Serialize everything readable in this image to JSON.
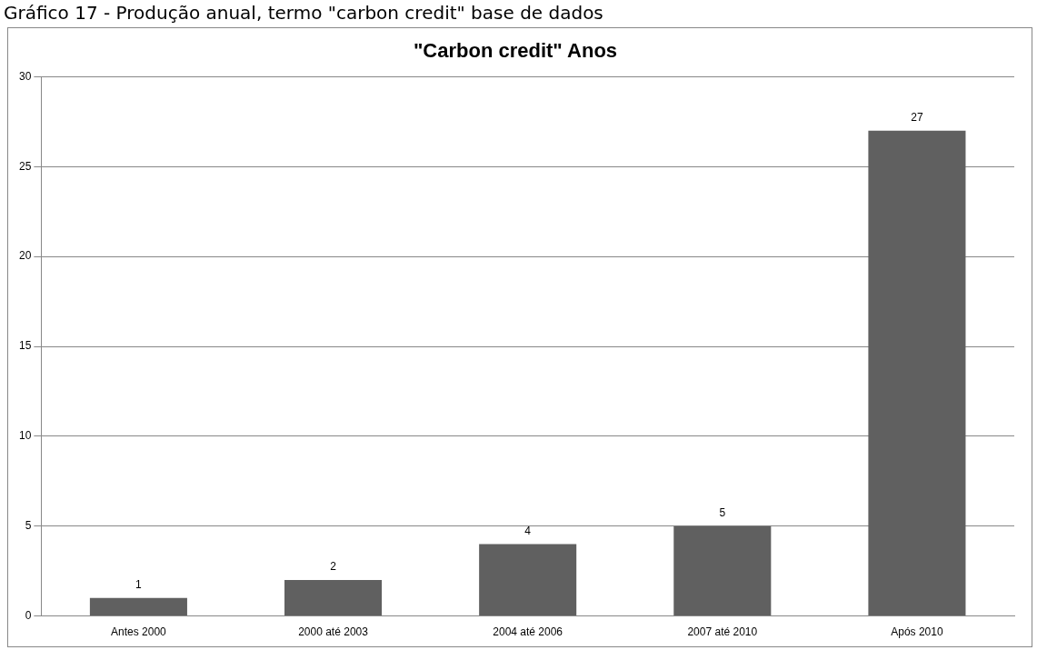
{
  "chart_data": {
    "type": "bar",
    "title": "\"Carbon credit\" Anos",
    "annotations": [
      "Gráfico 17 - Produção anual, termo \"carbon credit\" base de dados"
    ],
    "categories": [
      "Antes 2000",
      "2000 até 2003",
      "2004 até 2006",
      "2007 até 2010",
      "Após 2010"
    ],
    "values": [
      1,
      2,
      4,
      5,
      27
    ],
    "color": "#606060",
    "ylim": [
      0,
      30
    ],
    "yticks": [
      0,
      5,
      10,
      15,
      20,
      25,
      30
    ],
    "grid": "y",
    "data_labels": true,
    "legend": false
  }
}
